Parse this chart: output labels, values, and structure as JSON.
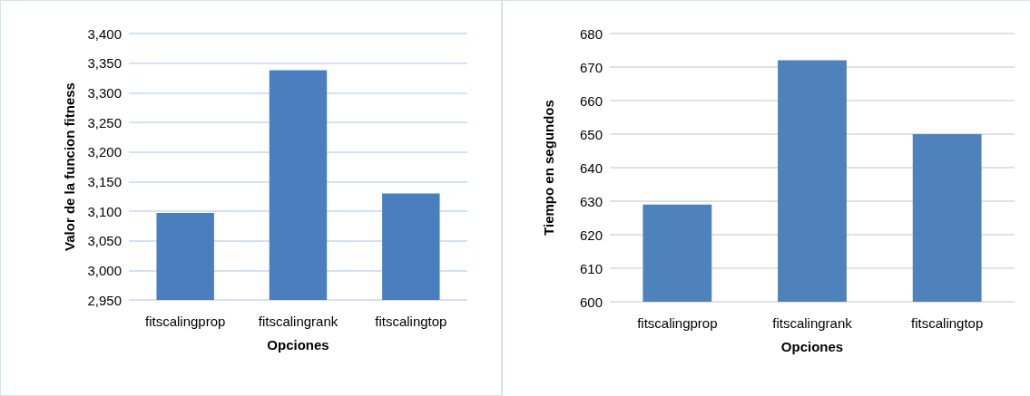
{
  "chart_data": [
    {
      "type": "bar",
      "xlabel": "Opciones",
      "ylabel": "Valor de la funcion fitness",
      "categories": [
        "fitscalingprop",
        "fitscalingrank",
        "fitscalingtop"
      ],
      "values": [
        3097,
        3338,
        3130
      ],
      "color": "#4a7ebf",
      "ylim": [
        2950,
        3400
      ],
      "yticks": [
        {
          "value": 2950,
          "label": "2,950"
        },
        {
          "value": 3000,
          "label": "3,000"
        },
        {
          "value": 3050,
          "label": "3,050"
        },
        {
          "value": 3100,
          "label": "3,100"
        },
        {
          "value": 3150,
          "label": "3,150"
        },
        {
          "value": 3200,
          "label": "3,200"
        },
        {
          "value": 3250,
          "label": "3,250"
        },
        {
          "value": 3300,
          "label": "3,300"
        },
        {
          "value": 3350,
          "label": "3,350"
        },
        {
          "value": 3400,
          "label": "3,400"
        }
      ],
      "grid": "y"
    },
    {
      "type": "bar",
      "xlabel": "Opciones",
      "ylabel": "Tiempo en segundos",
      "categories": [
        "fitscalingprop",
        "fitscalingrank",
        "fitscalingtop"
      ],
      "values": [
        629,
        672,
        650
      ],
      "color": "#4f81bd",
      "ylim": [
        600,
        680
      ],
      "yticks": [
        600,
        610,
        620,
        630,
        640,
        650,
        660,
        670,
        680
      ],
      "grid": "y"
    }
  ]
}
